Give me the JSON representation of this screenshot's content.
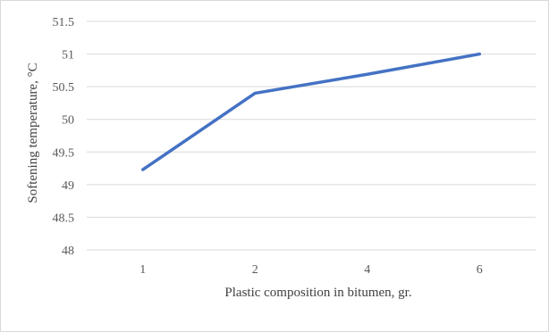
{
  "chart_data": {
    "type": "line",
    "categories": [
      "1",
      "2",
      "4",
      "6"
    ],
    "series": [
      {
        "values": [
          49.23,
          50.4,
          50.69,
          51.0
        ]
      }
    ],
    "xlabel": "Plastic composition in bitumen, gr.",
    "ylabel": "Softening temperature, °C",
    "ylim": [
      48,
      51.5
    ],
    "yticks": [
      "48",
      "48.5",
      "49",
      "49.5",
      "50",
      "50.5",
      "51",
      "51.5"
    ],
    "grid": "horizontal",
    "legend": "none",
    "colors": {
      "series": "#4472c4",
      "grid": "#d9d9d9",
      "text": "#595959"
    }
  }
}
